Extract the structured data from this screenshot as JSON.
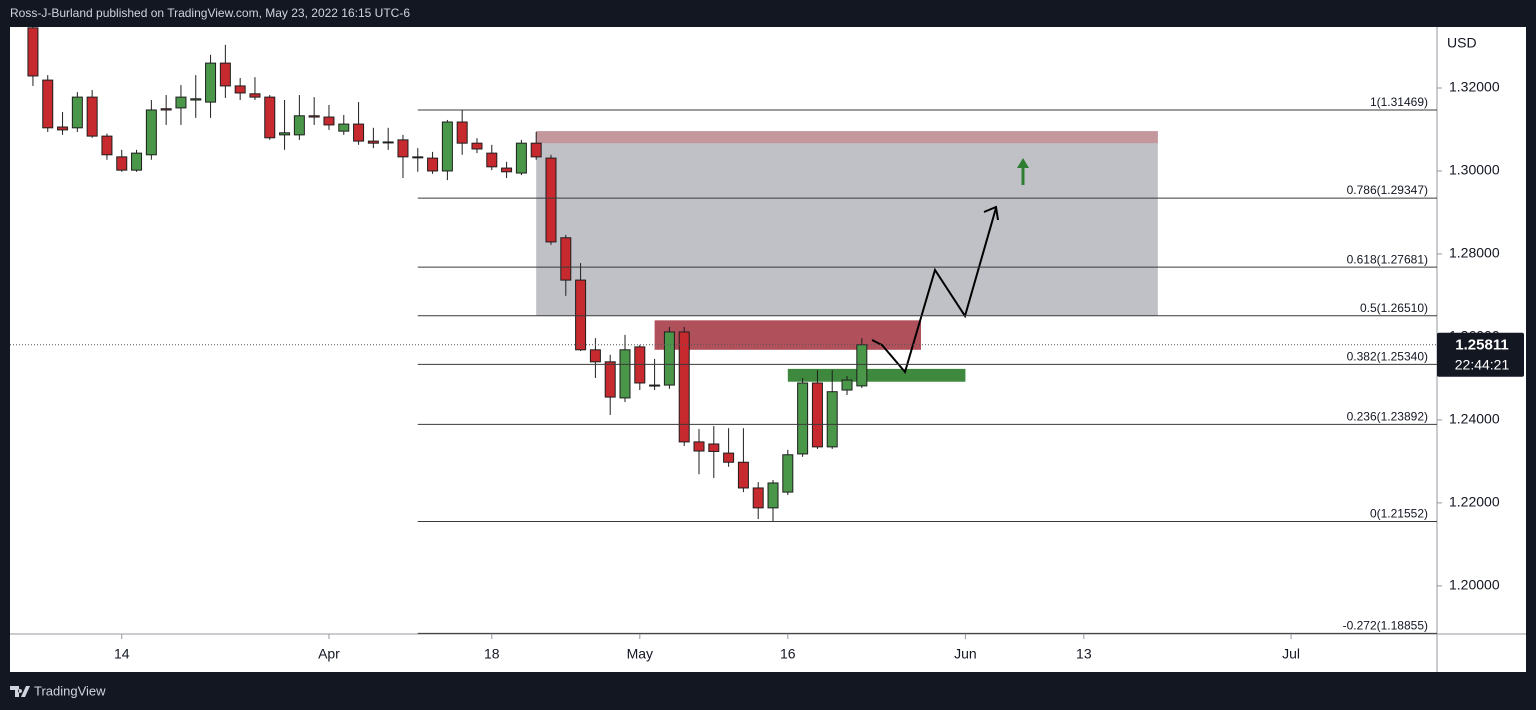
{
  "chart_data": {
    "type": "candlestick",
    "header": "Ross-J-Burland published on TradingView.com, May 23, 2022 16:15 UTC-6",
    "currency_label": "USD",
    "footer_brand": "TradingView",
    "up_color": "#4a974a",
    "down_color": "#c62a2f",
    "x": [
      0,
      1,
      2,
      3,
      4,
      5,
      6,
      7,
      8,
      9,
      10,
      11,
      12,
      13,
      14,
      15,
      16,
      17,
      18,
      19,
      20,
      21,
      22,
      23,
      24,
      25,
      26,
      27,
      28,
      29,
      30,
      31,
      32,
      33,
      34,
      35,
      36,
      37,
      38,
      39,
      40,
      41,
      42,
      43,
      44,
      45,
      46,
      47,
      48,
      49,
      50,
      51,
      52,
      53,
      54,
      55,
      56
    ],
    "open": [
      1.3345,
      1.3219,
      1.3106,
      1.3104,
      1.3178,
      1.3084,
      1.3034,
      1.3002,
      1.3039,
      1.315,
      1.3152,
      1.3171,
      1.3166,
      1.326,
      1.3205,
      1.3186,
      1.3178,
      1.3087,
      1.3087,
      1.3133,
      1.313,
      1.3096,
      1.3113,
      1.3072,
      1.307,
      1.3075,
      1.3034,
      1.3031,
      1.3,
      1.3118,
      1.3067,
      1.3043,
      1.3007,
      1.2995,
      1.3067,
      1.3031,
      1.2839,
      1.2737,
      1.2569,
      1.254,
      1.2453,
      1.2576,
      1.2484,
      1.2484,
      1.2612,
      1.2347,
      1.2342,
      1.232,
      1.2298,
      1.2236,
      1.2188,
      1.2226,
      1.2318,
      1.2489,
      1.2335,
      1.2472,
      1.2482
    ],
    "high": [
      1.3355,
      1.3231,
      1.3142,
      1.319,
      1.3195,
      1.309,
      1.3051,
      1.3051,
      1.3171,
      1.3183,
      1.3207,
      1.3231,
      1.328,
      1.3304,
      1.3224,
      1.3226,
      1.3183,
      1.3171,
      1.3183,
      1.3178,
      1.3159,
      1.3135,
      1.3166,
      1.3104,
      1.3104,
      1.3087,
      1.3055,
      1.3046,
      1.3123,
      1.3147,
      1.3079,
      1.3063,
      1.3022,
      1.3075,
      1.3094,
      1.3039,
      1.2846,
      1.2778,
      1.2597,
      1.2557,
      1.2605,
      1.2581,
      1.2547,
      1.2624,
      1.2624,
      1.2378,
      1.2385,
      1.238,
      1.238,
      1.225,
      1.2255,
      1.2328,
      1.2501,
      1.252,
      1.252,
      1.2506,
      1.2597
    ],
    "low": [
      1.3205,
      1.3094,
      1.3087,
      1.3094,
      1.308,
      1.3027,
      1.2998,
      1.2998,
      1.3027,
      1.3111,
      1.3111,
      1.3128,
      1.3128,
      1.3176,
      1.3171,
      1.3171,
      1.3075,
      1.3051,
      1.3075,
      1.3111,
      1.3099,
      1.3087,
      1.3063,
      1.3055,
      1.3051,
      1.2983,
      1.2998,
      1.2993,
      1.2978,
      1.3039,
      1.3043,
      1.3002,
      1.2983,
      1.299,
      1.3027,
      1.2822,
      1.2699,
      1.2566,
      1.2501,
      1.2412,
      1.2443,
      1.2472,
      1.2472,
      1.2475,
      1.2337,
      1.2269,
      1.226,
      1.2287,
      1.2226,
      1.2161,
      1.2155,
      1.2219,
      1.2311,
      1.233,
      1.233,
      1.246,
      1.2477
    ],
    "close": [
      1.3229,
      1.3104,
      1.3099,
      1.3178,
      1.3084,
      1.3039,
      1.3002,
      1.3043,
      1.3147,
      1.3147,
      1.3178,
      1.3174,
      1.326,
      1.3205,
      1.3188,
      1.3178,
      1.308,
      1.3092,
      1.3133,
      1.313,
      1.3111,
      1.3113,
      1.3072,
      1.3067,
      1.3068,
      1.3034,
      1.3032,
      1.3,
      1.3118,
      1.3067,
      1.3053,
      1.301,
      1.2998,
      1.3067,
      1.3034,
      1.2829,
      1.2737,
      1.2569,
      1.254,
      1.2455,
      1.2569,
      1.2489,
      1.2482,
      1.2612,
      1.2347,
      1.2325,
      1.2324,
      1.2298,
      1.2236,
      1.2188,
      1.2248,
      1.2316,
      1.2489,
      1.2335,
      1.2468,
      1.2496,
      1.25811
    ],
    "xlim": [
      -1.55,
      94.86
    ],
    "xticks": [
      {
        "value": 6,
        "label": "14"
      },
      {
        "value": 20,
        "label": "Apr"
      },
      {
        "value": 31,
        "label": "18"
      },
      {
        "value": 41,
        "label": "May"
      },
      {
        "value": 51,
        "label": "16"
      },
      {
        "value": 63,
        "label": "Jun"
      },
      {
        "value": 71,
        "label": "13"
      },
      {
        "value": 85,
        "label": "Jul"
      }
    ],
    "ylim": [
      1.1884,
      1.3347
    ],
    "yticks": [
      {
        "value": 1.32,
        "label": "1.32000"
      },
      {
        "value": 1.3,
        "label": "1.30000"
      },
      {
        "value": 1.28,
        "label": "1.28000"
      },
      {
        "value": 1.26,
        "label": "1.26000"
      },
      {
        "value": 1.24,
        "label": "1.24000"
      },
      {
        "value": 1.22,
        "label": "1.22000"
      },
      {
        "value": 1.2,
        "label": "1.20000"
      }
    ],
    "fib_start_x": 26,
    "fib_levels": [
      {
        "value": 1.31469,
        "label": "1(1.31469)"
      },
      {
        "value": 1.29347,
        "label": "0.786(1.29347)"
      },
      {
        "value": 1.27681,
        "label": "0.618(1.27681)"
      },
      {
        "value": 1.2651,
        "label": "0.5(1.26510)"
      },
      {
        "value": 1.2534,
        "label": "0.382(1.25340)"
      },
      {
        "value": 1.23892,
        "label": "0.236(1.23892)"
      },
      {
        "value": 1.21552,
        "label": "0(1.21552)"
      },
      {
        "value": 1.18855,
        "label": "-0.272(1.18855)"
      }
    ],
    "zones": [
      {
        "x": [
          34,
          76
        ],
        "y": [
          1.2651,
          1.3096
        ],
        "color": "#bfc1c7"
      },
      {
        "x": [
          34,
          76
        ],
        "y": [
          1.3067,
          1.3096
        ],
        "color": "#c4979d"
      },
      {
        "x": [
          42,
          60
        ],
        "y": [
          1.2569,
          1.264
        ],
        "color": "#b0505b"
      },
      {
        "x": [
          51,
          63
        ],
        "y": [
          1.2492,
          1.2523
        ],
        "color": "#3f893f"
      }
    ],
    "last_price": 1.25811,
    "countdown": "22:44:21"
  }
}
